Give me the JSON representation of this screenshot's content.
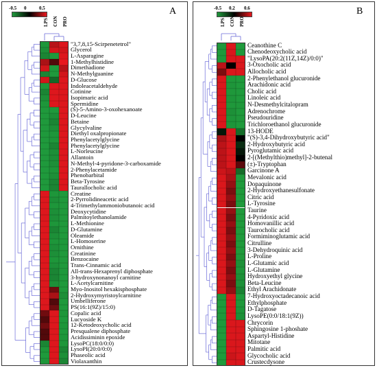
{
  "chart_data": [
    {
      "type": "heatmap",
      "panel_label": "A",
      "columns": [
        "LPS",
        "CON",
        "PRO"
      ],
      "color_scale": {
        "min": -0.5,
        "mid": 0,
        "max": 0.5,
        "labels": [
          "-0.5",
          "0",
          "0.5"
        ],
        "colors": [
          "#1f9a3c",
          "#000000",
          "#e8181e"
        ]
      },
      "rows": [
        "\"3,7,8,15-Scirpenetetrol\"",
        "Glycerol",
        "L-Asparagine",
        "1-Methylhistidine",
        "Dimethadione",
        "N-Methylguanine",
        "D-Glucose",
        "Indoleacetaldehyde",
        "Cotinine",
        "Isopimaric acid",
        "Spermidine",
        "(S)-5-Amino-3-oxohexanoate",
        "D-Leucine",
        "Betaine",
        "Glycylvaline",
        "Diethyl oxalpropionate",
        "Phenylacetylglycine",
        "Phenylacetylglycine",
        "L-Norleucine",
        "Allantoin",
        "N-Methyl-4-pyridone-3-carboxamide",
        "2-Phenylacetamide",
        "Phenobarbital",
        "Beta-Tyrosine",
        "Taurallocholic acid",
        "Creatine",
        "2-Pyrrolidineacetic acid",
        "4-Trimethylammoniobutanoic acid",
        "Deoxycytidine",
        "Palmitoylethanolamide",
        "L-Methionine",
        "D-Glutamine",
        "Oleamide",
        "L-Homoserine",
        "Ornithine",
        "Creatinine",
        "Benzocaine",
        "Trans-Cinnamic acid",
        "All-trans-Hexaprenyl diphosphate",
        "3-hydroxynonanoyl carnitine",
        "L-Acetylcarnitine",
        "Myo-Inositol hexakisphosphate",
        "2-Hydroxymyristoylcarnitine",
        "Umbelliferone",
        "PS(16:1(9Z)/15:0)",
        "Copalic acid",
        "Lucyoside K",
        "12-Ketodeoxycholic acid",
        "Presqualene diphosphate",
        "Acidissiminin epoxide",
        "LysoPC(18:0/0:0)",
        "LysoPI(20:0/0:0)",
        "Phaseolic acid",
        "Violaxanthin"
      ],
      "values": [
        [
          -0.4,
          0.3,
          0.45
        ],
        [
          -0.35,
          0.4,
          0.4
        ],
        [
          -0.3,
          -0.45,
          0.45
        ],
        [
          0.25,
          0.05,
          0.5
        ],
        [
          0.4,
          -0.45,
          0.3
        ],
        [
          -0.3,
          -0.45,
          0.4
        ],
        [
          0.4,
          -0.2,
          0.45
        ],
        [
          -0.4,
          0.45,
          0.45
        ],
        [
          -0.3,
          0.45,
          0.45
        ],
        [
          -0.35,
          0.45,
          0.45
        ],
        [
          -0.4,
          0.45,
          0.45
        ],
        [
          -0.45,
          -0.45,
          0.45
        ],
        [
          -0.45,
          -0.35,
          0.45
        ],
        [
          -0.45,
          -0.3,
          0.45
        ],
        [
          -0.45,
          -0.35,
          0.45
        ],
        [
          -0.45,
          -0.4,
          0.45
        ],
        [
          -0.45,
          -0.4,
          0.45
        ],
        [
          -0.45,
          -0.3,
          0.45
        ],
        [
          -0.45,
          -0.35,
          0.45
        ],
        [
          -0.45,
          -0.35,
          0.45
        ],
        [
          -0.45,
          -0.35,
          0.45
        ],
        [
          -0.45,
          -0.4,
          0.45
        ],
        [
          -0.45,
          -0.35,
          0.45
        ],
        [
          -0.45,
          -0.3,
          0.45
        ],
        [
          -0.45,
          -0.3,
          0.45
        ],
        [
          0.45,
          -0.4,
          -0.45
        ],
        [
          0.45,
          -0.35,
          -0.45
        ],
        [
          0.45,
          -0.4,
          -0.45
        ],
        [
          0.45,
          -0.35,
          -0.45
        ],
        [
          0.45,
          -0.35,
          -0.45
        ],
        [
          0.45,
          -0.4,
          -0.45
        ],
        [
          0.45,
          -0.3,
          -0.45
        ],
        [
          0.45,
          -0.35,
          -0.45
        ],
        [
          0.45,
          -0.4,
          -0.45
        ],
        [
          0.45,
          -0.35,
          -0.45
        ],
        [
          0.45,
          -0.35,
          -0.45
        ],
        [
          0.45,
          -0.4,
          -0.45
        ],
        [
          0.45,
          -0.35,
          -0.45
        ],
        [
          0.45,
          -0.3,
          -0.45
        ],
        [
          0.45,
          -0.3,
          -0.45
        ],
        [
          0.45,
          -0.35,
          -0.45
        ],
        [
          0.45,
          0.1,
          -0.45
        ],
        [
          0.45,
          0.25,
          -0.35
        ],
        [
          0.45,
          0.05,
          -0.45
        ],
        [
          0.45,
          0.1,
          -0.45
        ],
        [
          0.1,
          0.45,
          -0.4
        ],
        [
          0.05,
          0.45,
          -0.45
        ],
        [
          0.1,
          0.45,
          -0.4
        ],
        [
          0.05,
          0.45,
          -0.45
        ],
        [
          0.05,
          0.45,
          -0.4
        ],
        [
          -0.3,
          0.45,
          -0.4
        ],
        [
          -0.4,
          0.45,
          -0.3
        ],
        [
          -0.45,
          0.45,
          -0.35
        ],
        [
          -0.4,
          0.45,
          -0.3
        ]
      ]
    },
    {
      "type": "heatmap",
      "panel_label": "B",
      "columns": [
        "LPS",
        "CON",
        "PRO"
      ],
      "color_scale": {
        "min": -0.5,
        "mid": 0.2,
        "max": 0.6,
        "labels": [
          "-0.5",
          "0.2",
          "0.6"
        ],
        "colors": [
          "#1f9a3c",
          "#000000",
          "#e8181e"
        ]
      },
      "rows": [
        "Ceanothine C",
        "Chenodeoxycholic acid",
        "\"LysoPA(20:2(11Z,14Z)/0:0)\"",
        "3-Oxocholic acid",
        "Allocholic acid",
        "2-Phenylethanol glucuronide",
        "Arachidonic acid",
        "Cholic acid",
        "Linoleic acid",
        "N-Desmethylcitalopram",
        "Adrenochrome",
        "Pseudouridine",
        "Trichloroethanol glucuronide",
        "13-HODE",
        "\"(S)-3,4-Dihydroxybutyric acid\"",
        "2-Hydroxybutyric acid",
        "Pyroglutamic acid",
        "2-[(Methylthio)methyl]-2-butenal",
        "(±)-Tryptophan",
        "Garcinone A",
        "Mevalonic acid",
        "Dopaquinone",
        "2-Hydroxyethanesulfonate",
        "Citric acid",
        "L-Tyrosine",
        "Taurine",
        "4-Pyridoxic acid",
        "Homovanillic acid",
        "Taurocholic acid",
        "Formiminoglutamic acid",
        "Citrulline",
        "3-Dehydroquinic acid",
        "L-Proline",
        "L-Glutamic acid",
        "L-Glutamine",
        "Hydroxyethyl glycine",
        "Beta-Leucine",
        "Ethyl Arachidonate",
        "7-Hydroxyoctadecanoic acid",
        "Ethylphosphate",
        "D-Tagatose",
        "LysoPE(0:0/18:1(9Z))",
        "Chrycorin",
        "Sphingosine 1-phoshate",
        "Aspartyl-Histidine",
        "Mitotane",
        "Palmitic acid",
        "Glycocholic acid",
        "Crustecdysone"
      ],
      "values": [
        [
          -0.4,
          0.55,
          -0.45
        ],
        [
          -0.45,
          0.55,
          -0.4
        ],
        [
          -0.45,
          0.55,
          0.55
        ],
        [
          0.45,
          0.2,
          0.55
        ],
        [
          0.3,
          0.55,
          0.55
        ],
        [
          0.55,
          -0.4,
          -0.45
        ],
        [
          0.55,
          -0.35,
          -0.45
        ],
        [
          0.55,
          -0.4,
          -0.45
        ],
        [
          0.55,
          -0.35,
          -0.45
        ],
        [
          0.55,
          -0.4,
          -0.4
        ],
        [
          0.55,
          -0.3,
          -0.45
        ],
        [
          0.55,
          -0.35,
          -0.4
        ],
        [
          0.55,
          -0.35,
          -0.45
        ],
        [
          0.15,
          0.55,
          -0.1
        ],
        [
          0.4,
          0.55,
          0.2
        ],
        [
          0.45,
          0.55,
          0.1
        ],
        [
          0.45,
          0.55,
          0.15
        ],
        [
          0.45,
          0.55,
          0.2
        ],
        [
          0.45,
          0.55,
          0.25
        ],
        [
          0.5,
          0.45,
          -0.1
        ],
        [
          0.55,
          0.4,
          -0.45
        ],
        [
          0.55,
          0.35,
          -0.45
        ],
        [
          0.55,
          0.3,
          -0.45
        ],
        [
          0.55,
          0.35,
          -0.45
        ],
        [
          0.55,
          0.3,
          -0.45
        ],
        [
          0.55,
          0.35,
          -0.45
        ],
        [
          0.55,
          0.3,
          -0.45
        ],
        [
          0.55,
          0.35,
          -0.45
        ],
        [
          0.55,
          0.3,
          -0.45
        ],
        [
          0.55,
          0.35,
          -0.45
        ],
        [
          0.55,
          0.3,
          -0.45
        ],
        [
          0.55,
          0.35,
          -0.45
        ],
        [
          0.55,
          0.3,
          -0.4
        ],
        [
          0.55,
          0.35,
          -0.3
        ],
        [
          0.55,
          0.3,
          -0.35
        ],
        [
          0.55,
          0.35,
          -0.3
        ],
        [
          0.55,
          0.3,
          -0.3
        ],
        [
          0.55,
          0.35,
          -0.2
        ],
        [
          -0.4,
          0.55,
          -0.45
        ],
        [
          -0.45,
          0.55,
          -0.4
        ],
        [
          -0.45,
          0.55,
          -0.35
        ],
        [
          -0.4,
          0.55,
          -0.3
        ],
        [
          -0.45,
          0.55,
          0.55
        ],
        [
          -0.45,
          0.55,
          0.55
        ],
        [
          -0.45,
          0.55,
          0.55
        ],
        [
          -0.45,
          0.55,
          0.55
        ],
        [
          -0.45,
          0.55,
          0.55
        ],
        [
          -0.45,
          0.5,
          0.55
        ],
        [
          -0.45,
          0.55,
          0.55
        ]
      ]
    }
  ]
}
